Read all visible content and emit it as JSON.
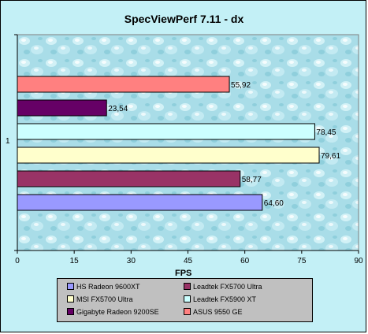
{
  "chart_data": {
    "type": "bar",
    "orientation": "horizontal",
    "title": "SpecViewPerf 7.11 - dx",
    "xlabel": "FPS",
    "categories": [
      "1"
    ],
    "xlim": [
      0,
      90
    ],
    "xticks": [
      "0",
      "15",
      "30",
      "45",
      "60",
      "75",
      "90"
    ],
    "series": [
      {
        "name": "HS Radeon 9600XT",
        "values": [
          64.6
        ],
        "label": "64,60",
        "color": "#9999ff"
      },
      {
        "name": "Leadtek FX5700 Ultra",
        "values": [
          58.77
        ],
        "label": "58,77",
        "color": "#993366"
      },
      {
        "name": "MSI FX5700 Ultra",
        "values": [
          79.61
        ],
        "label": "79,61",
        "color": "#ffffcc"
      },
      {
        "name": "Leadtek FX5900 XT",
        "values": [
          78.45
        ],
        "label": "78,45",
        "color": "#ccffff"
      },
      {
        "name": "Gigabyte Radeon 9200SE",
        "values": [
          23.54
        ],
        "label": "23,54",
        "color": "#660066"
      },
      {
        "name": "ASUS 9550 GE",
        "values": [
          55.92
        ],
        "label": "55,92",
        "color": "#ff8080"
      }
    ],
    "grid": false,
    "legend_position": "bottom"
  },
  "legend": {
    "items": [
      {
        "label": "HS Radeon 9600XT",
        "color": "#9999ff"
      },
      {
        "label": "Leadtek FX5700 Ultra",
        "color": "#993366"
      },
      {
        "label": "MSI FX5700 Ultra",
        "color": "#ffffcc"
      },
      {
        "label": "Leadtek FX5900 XT",
        "color": "#ccffff"
      },
      {
        "label": "Gigabyte Radeon 9200SE",
        "color": "#660066"
      },
      {
        "label": "ASUS 9550 GE",
        "color": "#ff8080"
      }
    ]
  }
}
